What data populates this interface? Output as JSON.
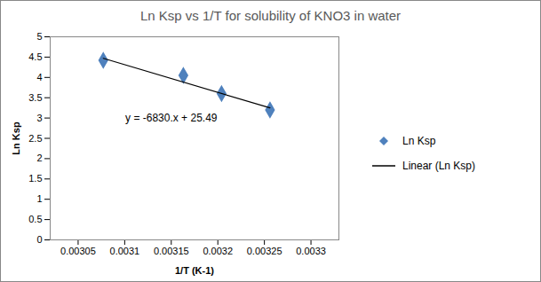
{
  "chart_data": {
    "type": "scatter",
    "title": "Ln Ksp vs 1/T for solubility of KNO3 in water",
    "x_label": "1/T (K-1)",
    "y_label": "Ln Ksp",
    "series": [
      {
        "name": "Ln Ksp",
        "type": "scatter",
        "marker": "diamond",
        "color": "#4f81bd",
        "x": [
          0.003077,
          0.003163,
          0.003204,
          0.003256
        ],
        "values": [
          4.42,
          4.05,
          3.6,
          3.2
        ]
      },
      {
        "name": "Linear (Ln Ksp)",
        "type": "line",
        "line_style": "solid",
        "color": "#000000",
        "x": [
          0.003077,
          0.003256
        ],
        "values": [
          4.47,
          3.25
        ]
      }
    ],
    "annotations": [
      {
        "text": "y = -6830.x + 25.49",
        "x": 0.00315,
        "y": 3.0
      }
    ],
    "xlim": [
      0.00302,
      0.00333
    ],
    "xticks": [
      0.00305,
      0.0031,
      0.00315,
      0.0032,
      0.00325,
      0.0033
    ],
    "ylim": [
      0,
      5
    ],
    "yticks": [
      0,
      0.5,
      1,
      1.5,
      2,
      2.5,
      3,
      3.5,
      4,
      4.5,
      5
    ],
    "grid": false,
    "legend": "right"
  }
}
